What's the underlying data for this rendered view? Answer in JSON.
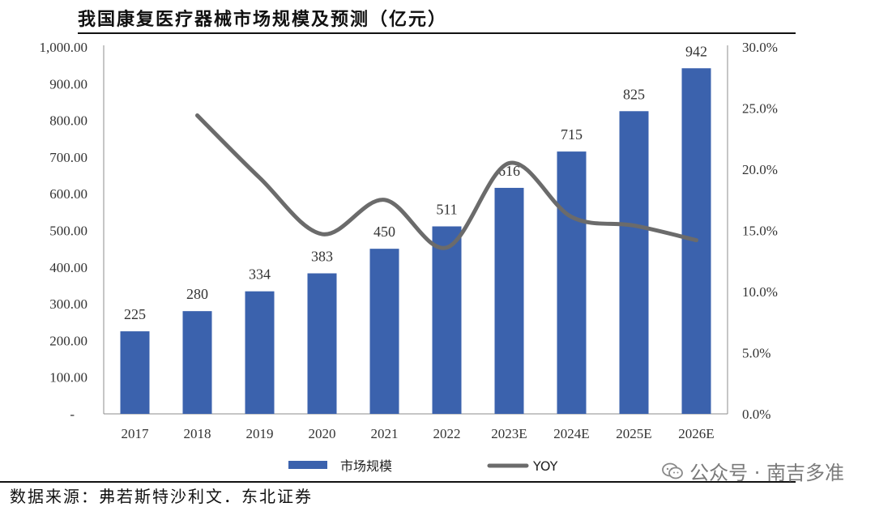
{
  "header": {
    "title": "我国康复医疗器械市场规模及预测（亿元）"
  },
  "footer": {
    "source": "数据来源：弗若斯特沙利文．东北证券"
  },
  "watermark": {
    "text": "公众号 · 南吉多准",
    "icon": "wechat-icon"
  },
  "colors": {
    "bar": "#3b62ad",
    "line": "#6b6b6b",
    "axis": "#8c8c8c"
  },
  "chart_data": {
    "type": "bar",
    "title": "我国康复医疗器械市场规模及预测（亿元）",
    "categories": [
      "2017",
      "2018",
      "2019",
      "2020",
      "2021",
      "2022",
      "2023E",
      "2024E",
      "2025E",
      "2026E"
    ],
    "series": [
      {
        "name": "市场规模",
        "type": "bar",
        "axis": "left",
        "values": [
          225,
          280,
          334,
          383,
          450,
          511,
          616,
          715,
          825,
          942
        ],
        "labels": [
          "225",
          "280",
          "334",
          "383",
          "450",
          "511",
          "616",
          "715",
          "825",
          "942"
        ]
      },
      {
        "name": "YOY",
        "type": "line",
        "axis": "right",
        "smooth": true,
        "values": [
          null,
          24.4,
          19.3,
          14.7,
          17.5,
          13.6,
          20.5,
          16.1,
          15.4,
          14.2
        ]
      }
    ],
    "yleft": {
      "ylim": [
        0,
        1000
      ],
      "ticks": [
        0,
        100,
        200,
        300,
        400,
        500,
        600,
        700,
        800,
        900,
        1000
      ],
      "tick_labels": [
        "-",
        "100.00",
        "200.00",
        "300.00",
        "400.00",
        "500.00",
        "600.00",
        "700.00",
        "800.00",
        "900.00",
        "1,000.00"
      ]
    },
    "yright": {
      "ylim": [
        0,
        30
      ],
      "ticks": [
        0,
        5,
        10,
        15,
        20,
        25,
        30
      ],
      "tick_labels": [
        "0.0%",
        "5.0%",
        "10.0%",
        "15.0%",
        "20.0%",
        "25.0%",
        "30.0%"
      ]
    },
    "legend": {
      "position": "bottom",
      "items": [
        "市场规模",
        "YOY"
      ]
    },
    "grid": false
  }
}
